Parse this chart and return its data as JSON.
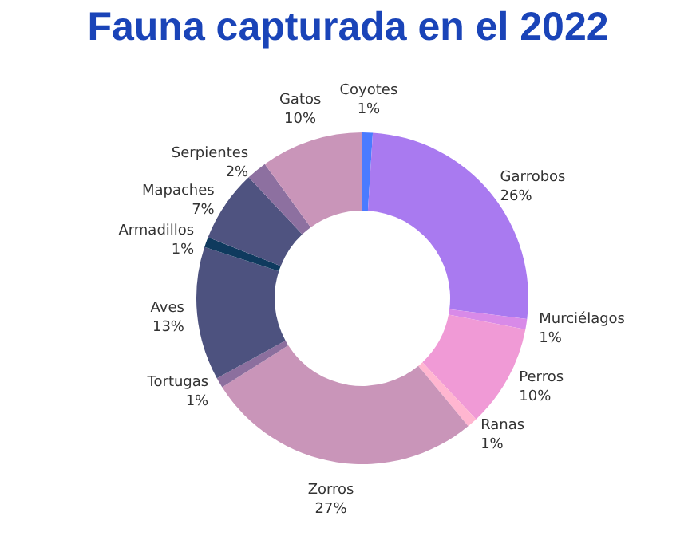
{
  "chart_data": {
    "type": "donut",
    "title": "Fauna capturada en el 2022",
    "categories": [
      "Coyotes",
      "Garrobos",
      "Murciélagos",
      "Perros",
      "Ranas",
      "Zorros",
      "Tortugas",
      "Aves",
      "Armadillos",
      "Mapaches",
      "Serpientes",
      "Gatos"
    ],
    "values": [
      1,
      26,
      1,
      10,
      1,
      27,
      1,
      13,
      1,
      7,
      2,
      10
    ],
    "value_labels": [
      "1%",
      "26%",
      "1%",
      "10%",
      "1%",
      "27%",
      "1%",
      "13%",
      "1%",
      "7%",
      "2%",
      "10%"
    ],
    "colors": [
      "#4a7bff",
      "#a97af0",
      "#d88ae8",
      "#f09ad6",
      "#ffb6d0",
      "#c995b9",
      "#8c6f9e",
      "#4d527f",
      "#0f3a5e",
      "#4f5380",
      "#8d70a0",
      "#c995b9"
    ],
    "legend": false
  }
}
